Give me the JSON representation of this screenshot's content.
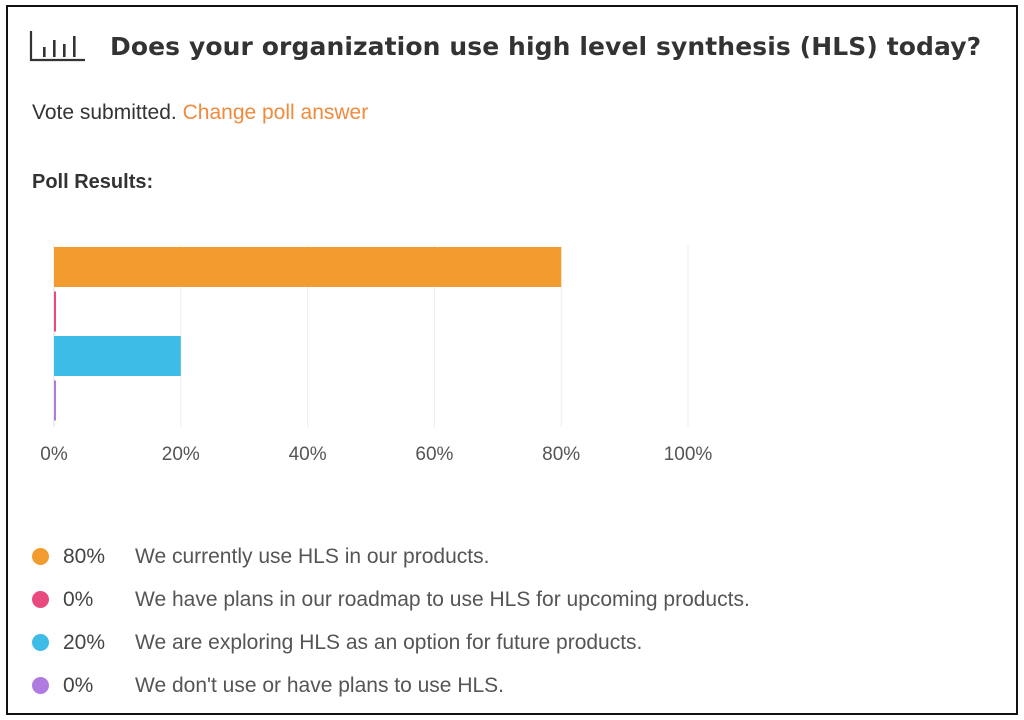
{
  "poll": {
    "title": "Does your organization use high level synthesis (HLS) today?",
    "status_text": "Vote submitted.",
    "change_link": "Change poll answer",
    "results_heading": "Poll Results:",
    "icon": "bar-chart-icon"
  },
  "colors": {
    "accent": "#f08a3c",
    "series": [
      "#f29b2f",
      "#e84a7f",
      "#3dbce7",
      "#b07be0"
    ]
  },
  "chart_data": {
    "type": "bar",
    "orientation": "horizontal",
    "categories": [
      "We currently use HLS in our products.",
      "We have plans in our roadmap to use HLS for upcoming products.",
      "We are exploring HLS as an option for future products.",
      "We don't use or have plans to use HLS."
    ],
    "values": [
      80,
      0,
      20,
      0
    ],
    "xlim": [
      0,
      100
    ],
    "xticks": [
      "0%",
      "20%",
      "40%",
      "60%",
      "80%",
      "100%"
    ],
    "grid": true,
    "title": "",
    "xlabel": "",
    "ylabel": ""
  },
  "legend": [
    {
      "percent": "80%",
      "label": "We currently use HLS in our products."
    },
    {
      "percent": "0%",
      "label": "We have plans in our roadmap to use HLS for upcoming products."
    },
    {
      "percent": "20%",
      "label": "We are exploring HLS as an option for future products."
    },
    {
      "percent": "0%",
      "label": "We don't use or have plans to use HLS."
    }
  ]
}
